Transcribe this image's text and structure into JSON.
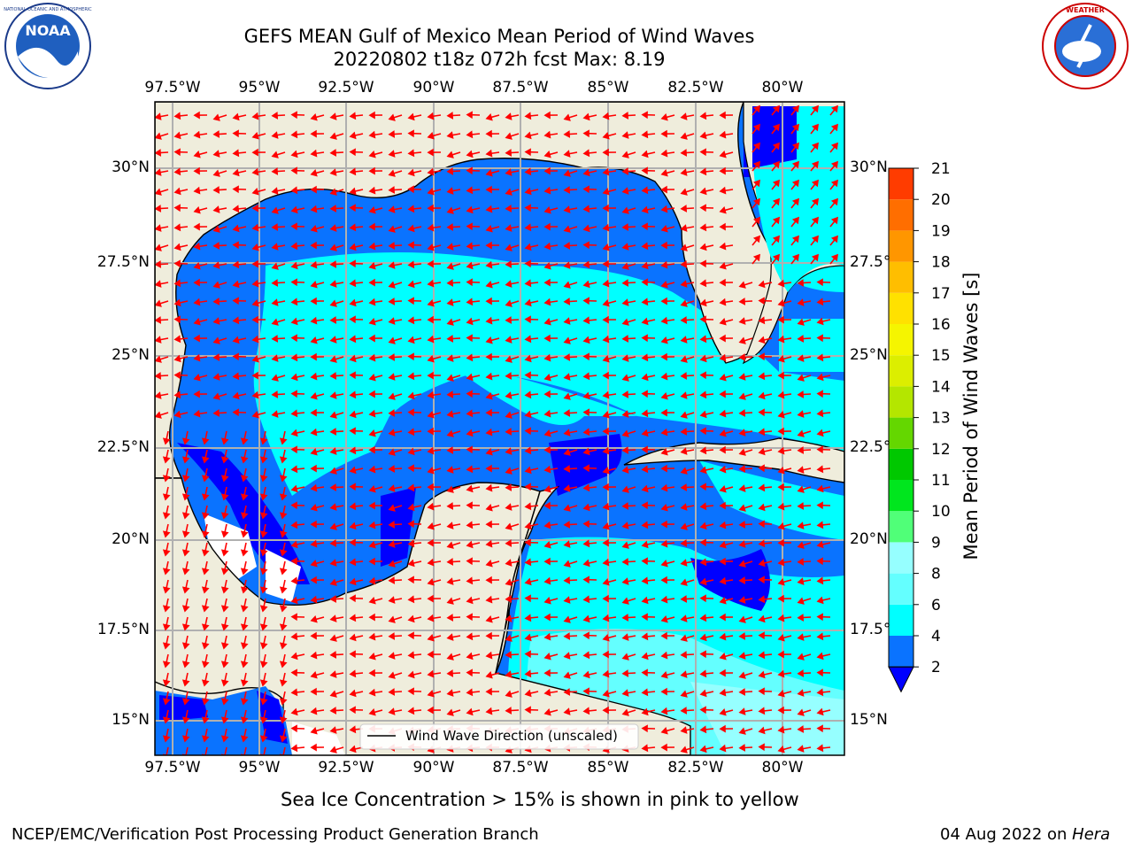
{
  "header": {
    "title_line1": "GEFS MEAN Gulf of Mexico Mean Period of Wind Waves",
    "title_line2": "20220802 t18z 072h fcst   Max: 8.19"
  },
  "logos": {
    "left": {
      "name": "NOAA",
      "ring_text": "NATIONAL OCEANIC AND ATMOSPHERIC ADMINISTRATION · U.S. DEPARTMENT OF COMMERCE"
    },
    "right": {
      "ring_text": "NATIONAL WEATHER SERVICE"
    }
  },
  "map": {
    "lon_labels": [
      "97.5°W",
      "95°W",
      "92.5°W",
      "90°W",
      "87.5°W",
      "85°W",
      "82.5°W",
      "80°W"
    ],
    "lat_labels": [
      "30°N",
      "27.5°N",
      "25°N",
      "22.5°N",
      "20°N",
      "17.5°N",
      "15°N"
    ],
    "lat_labels_right": [
      "30°N",
      "27.5°",
      "25°N",
      "22.5°",
      "20°N",
      "17.5°",
      "15°N"
    ],
    "legend_label": "Wind Wave Direction (unscaled)",
    "colors": {
      "land": "#efeddc",
      "ocean_2_4": "#0a73ff",
      "ocean_4_6": "#00ffff",
      "ocean_6_8": "#64ffff",
      "ocean_lt2": "#0000ff",
      "arrow": "#ff0000",
      "grid": "#b0b0b0"
    }
  },
  "colorbar": {
    "label": "Mean Period of Wind Waves [s]",
    "ticks": [
      "2",
      "4",
      "6",
      "8",
      "9",
      "10",
      "11",
      "12",
      "13",
      "14",
      "15",
      "16",
      "17",
      "18",
      "19",
      "20",
      "21"
    ],
    "colors": [
      "#0a73ff",
      "#00ffff",
      "#64ffff",
      "#96ffff",
      "#50ff78",
      "#00e61e",
      "#00c800",
      "#64d700",
      "#b4e600",
      "#dcee00",
      "#f5f500",
      "#ffe100",
      "#ffbe00",
      "#ff9600",
      "#ff6e00",
      "#ff3c00",
      "#ff0000"
    ],
    "under_color": "#0000ff"
  },
  "caption": "Sea Ice Concentration > 15% is shown in pink to yellow",
  "footer": {
    "left": "NCEP/EMC/Verification Post Processing Product Generation Branch",
    "right_date": "04 Aug 2022 on ",
    "right_host": "Hera"
  }
}
